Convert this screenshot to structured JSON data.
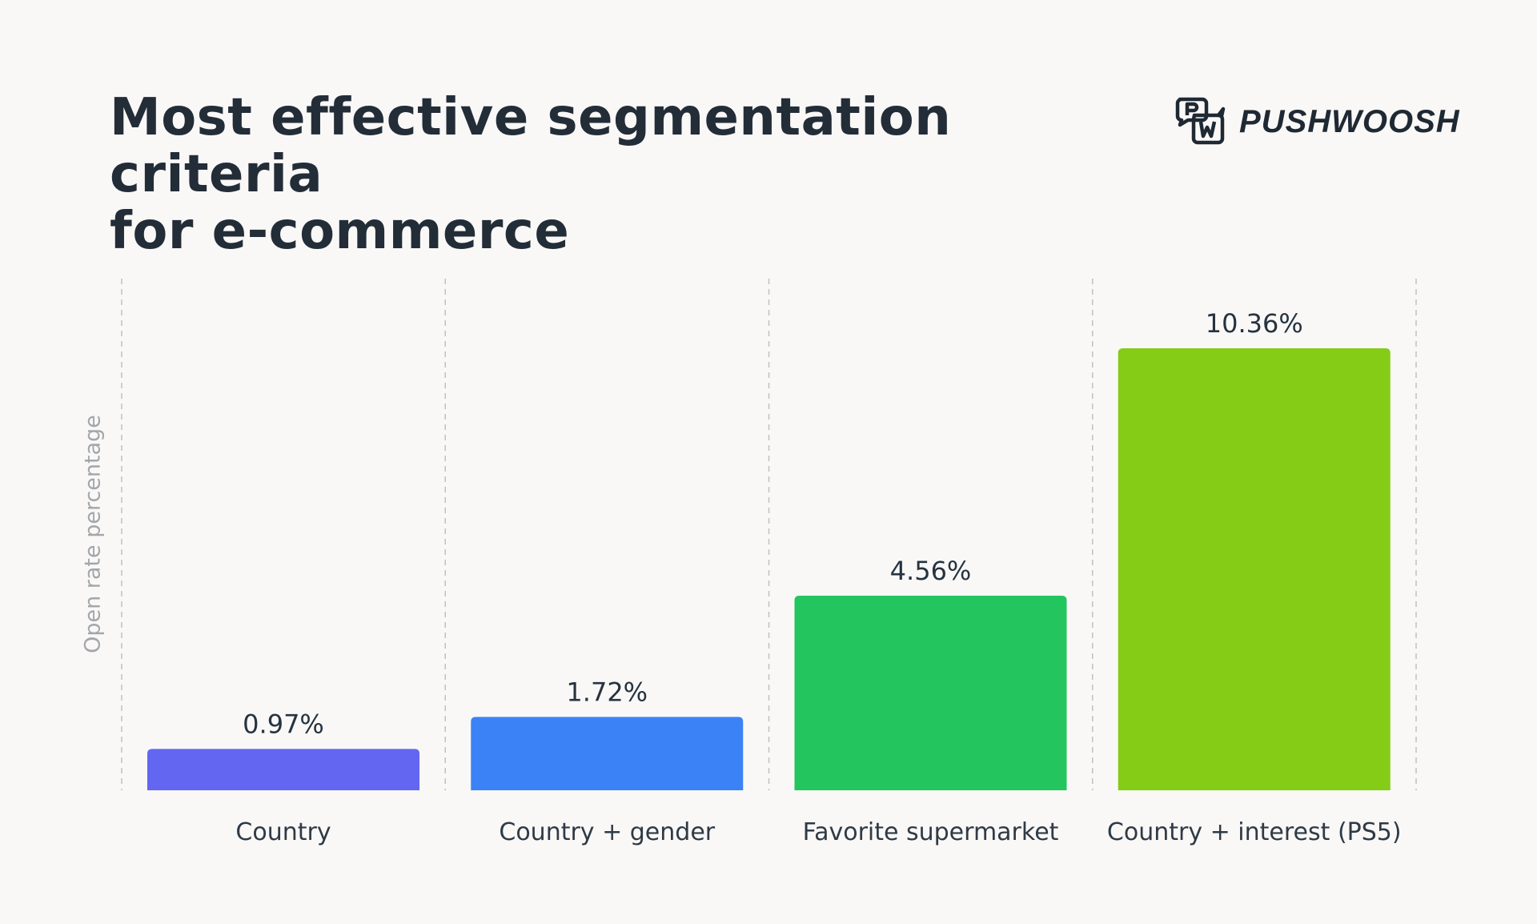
{
  "header": {
    "title_lines": [
      "Most effective segmentation criteria",
      "for e-commerce"
    ]
  },
  "logo": {
    "text": "PUSHWOOSH",
    "icon": "pw-speech-bubbles-logo"
  },
  "chart_data": {
    "type": "bar",
    "title": "Most effective segmentation criteria for e-commerce",
    "ylabel": "Open rate percentage",
    "xlabel": "",
    "categories": [
      "Country",
      "Country + gender",
      "Favorite supermarket",
      "Country + interest (PS5)"
    ],
    "values": [
      0.97,
      1.72,
      4.56,
      10.36
    ],
    "value_labels": [
      "0.97%",
      "1.72%",
      "4.56%",
      "10.36%"
    ],
    "colors": [
      "#6366f1",
      "#3b82f6",
      "#22c55e",
      "#84cc16"
    ],
    "ylim": [
      0,
      10.36
    ],
    "grid": "vertical dashed separators",
    "legend": "none"
  }
}
